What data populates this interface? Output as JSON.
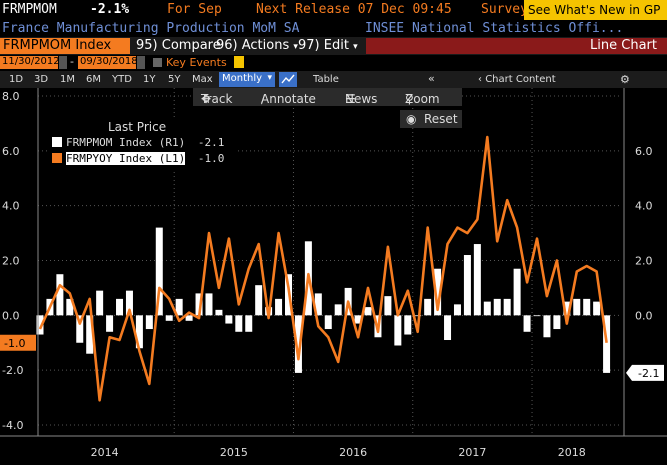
{
  "header": {
    "ticker": "FRMPMOM",
    "change": "-2.1%",
    "for_label": "For Sep",
    "next_release": "Next Release 07 Dec 09:45",
    "survey": "Survey",
    "promo": "See What's New in GP"
  },
  "subheader": {
    "title": "France Manufacturing Production MoM SA",
    "source": "INSEE National Statistics Offi..."
  },
  "menubar": {
    "security": "FRMPMOM Index",
    "compare": "95) Compare",
    "actions": "96) Actions",
    "edit": "97) Edit",
    "chart_type": "Line Chart"
  },
  "daterow": {
    "start": "11/30/2012",
    "end": "09/30/2018",
    "key_events": "Key Events"
  },
  "periods": [
    "1D",
    "3D",
    "1M",
    "6M",
    "YTD",
    "1Y",
    "5Y",
    "Max"
  ],
  "frequency": "Monthly",
  "table_label": "Table",
  "chart_content": "Chart Content",
  "tools": {
    "track": "Track",
    "annotate": "Annotate",
    "news": "News",
    "zoom": "Zoom",
    "reset": "Reset"
  },
  "legend": {
    "title": "Last Price",
    "items": [
      {
        "label": "FRMPMOM Index  (R1)",
        "value": "-2.1",
        "color": "#ffffff"
      },
      {
        "label": "FRMPYOY Index  (L1)",
        "value": "-1.0",
        "color": "#f47b20"
      }
    ]
  },
  "colors": {
    "accent": "#f47b20",
    "bg": "#000000",
    "promo_bg": "#f5c400",
    "menubar_orange": "#f47b20"
  },
  "chart_data": {
    "type": "bar",
    "x_labels": [
      "2014",
      "2015",
      "2016",
      "2017",
      "2018"
    ],
    "left_axis": {
      "ylim": [
        -4.0,
        8.0
      ],
      "ticks": [
        "8.0",
        "6.0",
        "4.0",
        "2.0",
        "0.0",
        "-2.0",
        "-4.0"
      ]
    },
    "right_axis": {
      "ylim": [
        -3.1,
        7.5
      ],
      "ticks": [
        "6.0",
        "4.0",
        "2.0",
        "0.0",
        "-2.0"
      ]
    },
    "last_value_tags": {
      "left": "-1.0",
      "right": "-2.1"
    },
    "series": [
      {
        "name": "FRMPMOM Index",
        "axis": "right",
        "type": "bar",
        "color": "#ffffff",
        "values": [
          -0.7,
          0.6,
          1.5,
          0.6,
          -1.0,
          -1.4,
          0.9,
          -0.6,
          0.6,
          0.9,
          -1.2,
          -0.5,
          3.2,
          -0.2,
          0.6,
          -0.2,
          0.8,
          0.8,
          0.2,
          -0.3,
          -0.6,
          -0.6,
          1.1,
          0.3,
          0.6,
          1.5,
          -2.1,
          2.7,
          0.8,
          -0.5,
          0.4,
          1.0,
          -0.3,
          0.3,
          -0.8,
          0.7,
          -1.1,
          -0.7,
          0.0,
          0.6,
          1.7,
          -0.9,
          0.4,
          2.2,
          2.6,
          0.5,
          0.6,
          0.6,
          1.7,
          -0.6,
          0.0,
          -0.8,
          -0.5,
          0.5,
          0.6,
          0.6,
          0.5,
          -2.1
        ]
      },
      {
        "name": "FRMPYOY Index",
        "axis": "left",
        "type": "line",
        "color": "#f47b20",
        "values": [
          -0.5,
          0.3,
          1.1,
          0.8,
          -0.3,
          0.6,
          -3.1,
          -0.8,
          -0.9,
          0.2,
          -1.3,
          -2.5,
          1.0,
          0.6,
          -0.2,
          0.1,
          -0.1,
          3.0,
          1.0,
          2.8,
          0.4,
          1.7,
          2.6,
          -0.1,
          3.0,
          1.0,
          -1.6,
          1.5,
          -0.4,
          -0.8,
          -1.7,
          0.5,
          -0.8,
          1.0,
          -0.6,
          2.5,
          0.0,
          0.9,
          -0.6,
          3.2,
          0.2,
          2.6,
          3.2,
          3.0,
          3.5,
          6.5,
          2.7,
          4.2,
          3.2,
          1.2,
          2.8,
          0.7,
          2.0,
          -0.3,
          1.6,
          1.8,
          1.6,
          -1.0
        ]
      }
    ]
  }
}
